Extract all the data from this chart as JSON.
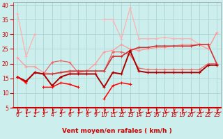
{
  "xlabel": "Vent moyen/en rafales ( km/h )",
  "background_color": "#cceeed",
  "grid_color": "#aad4d3",
  "x_ticks": [
    0,
    1,
    2,
    3,
    4,
    5,
    6,
    7,
    8,
    9,
    10,
    11,
    12,
    13,
    14,
    15,
    16,
    17,
    18,
    19,
    20,
    21,
    22,
    23
  ],
  "ylim": [
    5,
    41
  ],
  "yticks": [
    5,
    10,
    15,
    20,
    25,
    30,
    35,
    40
  ],
  "series": [
    {
      "color": "#ffb0b0",
      "linewidth": 0.9,
      "marker": "+",
      "markersize": 3,
      "y": [
        37.0,
        22.5,
        30.0,
        null,
        null,
        null,
        null,
        null,
        null,
        null,
        35.0,
        35.0,
        28.5,
        39.0,
        28.5,
        28.5,
        28.5,
        29.0,
        28.5,
        28.5,
        28.5,
        26.5,
        25.0,
        30.5
      ]
    },
    {
      "color": "#ff9999",
      "linewidth": 0.9,
      "marker": "+",
      "markersize": 3,
      "y": [
        22.0,
        19.0,
        19.0,
        17.0,
        16.5,
        17.0,
        17.0,
        17.5,
        17.5,
        20.0,
        24.0,
        24.5,
        26.5,
        25.0,
        24.5,
        25.0,
        25.5,
        25.5,
        26.0,
        26.5,
        26.5,
        26.5,
        25.0,
        30.5
      ]
    },
    {
      "color": "#ee6666",
      "linewidth": 0.9,
      "marker": "+",
      "markersize": 3,
      "y": [
        15.5,
        14.0,
        17.0,
        16.5,
        20.5,
        21.0,
        20.5,
        17.0,
        17.5,
        17.5,
        17.5,
        24.0,
        24.0,
        23.0,
        18.5,
        18.0,
        18.0,
        18.0,
        18.0,
        18.0,
        18.0,
        18.0,
        20.0,
        20.0
      ]
    },
    {
      "color": "#cc3333",
      "linewidth": 1.2,
      "marker": "+",
      "markersize": 3,
      "y": [
        15.5,
        14.0,
        17.0,
        16.5,
        16.5,
        17.0,
        17.5,
        17.5,
        17.5,
        17.5,
        17.5,
        22.5,
        22.5,
        24.5,
        25.5,
        25.5,
        26.0,
        26.0,
        26.0,
        26.0,
        26.0,
        26.5,
        26.5,
        20.0
      ]
    },
    {
      "color": "#aa0000",
      "linewidth": 1.4,
      "marker": "+",
      "markersize": 3,
      "y": [
        15.5,
        14.0,
        17.0,
        16.5,
        12.5,
        15.5,
        16.5,
        16.5,
        16.5,
        16.5,
        12.0,
        17.0,
        16.5,
        24.5,
        17.5,
        17.0,
        17.0,
        17.0,
        17.0,
        17.0,
        17.0,
        17.0,
        19.5,
        19.5
      ]
    },
    {
      "color": "#ff0000",
      "linewidth": 1.1,
      "marker": "+",
      "markersize": 3,
      "y": [
        15.5,
        13.5,
        null,
        12.0,
        12.0,
        13.5,
        13.0,
        12.0,
        null,
        null,
        8.0,
        12.5,
        13.5,
        13.0,
        null,
        null,
        null,
        null,
        null,
        null,
        null,
        null,
        null,
        null
      ]
    }
  ],
  "arrow_color": "#cc0000",
  "xlabel_color": "#cc0000",
  "tick_color": "#cc0000",
  "tick_fontsize": 5.5,
  "xlabel_fontsize": 6.5,
  "xlabel_fontweight": "bold"
}
